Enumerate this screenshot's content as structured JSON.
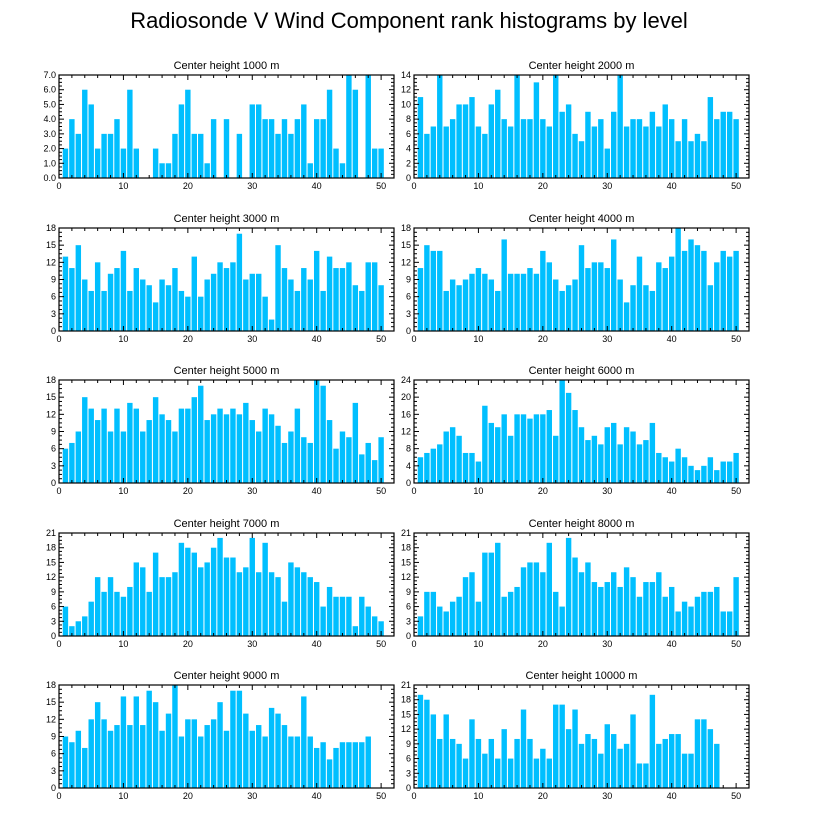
{
  "title": "Radiosonde V Wind Component rank histograms by level",
  "bar_color": "#00bfff",
  "chart_data": [
    {
      "type": "bar",
      "title": "Center height 1000 m",
      "xlim": [
        0,
        52
      ],
      "xticks": [
        0,
        10,
        20,
        30,
        40,
        50
      ],
      "ylim": [
        0,
        7
      ],
      "yticks": [
        0,
        1,
        2,
        3,
        4,
        5,
        6,
        7
      ],
      "ytick_labels": [
        "0.0",
        "1.0",
        "2.0",
        "3.0",
        "4.0",
        "5.0",
        "6.0",
        "7.0"
      ],
      "values": [
        2,
        4,
        3,
        6,
        5,
        2,
        3,
        3,
        4,
        2,
        6,
        2,
        0,
        0,
        2,
        1,
        1,
        3,
        5,
        6,
        3,
        3,
        1,
        4,
        0,
        4,
        0,
        3,
        0,
        5,
        5,
        4,
        4,
        3,
        4,
        3,
        4,
        5,
        1,
        4,
        4,
        6,
        2,
        1,
        7,
        6,
        0,
        7,
        2,
        2
      ]
    },
    {
      "type": "bar",
      "title": "Center height 2000 m",
      "xlim": [
        0,
        52
      ],
      "xticks": [
        0,
        10,
        20,
        30,
        40,
        50
      ],
      "ylim": [
        0,
        14
      ],
      "yticks": [
        0,
        2,
        4,
        6,
        8,
        10,
        12,
        14
      ],
      "ytick_labels": [
        "0",
        "2",
        "4",
        "6",
        "8",
        "10",
        "12",
        "14"
      ],
      "values": [
        11,
        6,
        7,
        14,
        7,
        8,
        10,
        10,
        11,
        7,
        6,
        10,
        12,
        8,
        7,
        14,
        8,
        8,
        13,
        8,
        7,
        14,
        9,
        10,
        6,
        5,
        9,
        7,
        8,
        4,
        9,
        14,
        7,
        8,
        8,
        7,
        9,
        7,
        10,
        8,
        5,
        8,
        5,
        6,
        5,
        11,
        8,
        9,
        9,
        8
      ]
    },
    {
      "type": "bar",
      "title": "Center height 3000 m",
      "xlim": [
        0,
        52
      ],
      "xticks": [
        0,
        10,
        20,
        30,
        40,
        50
      ],
      "ylim": [
        0,
        18
      ],
      "yticks": [
        0,
        3,
        6,
        9,
        12,
        15,
        18
      ],
      "ytick_labels": [
        "0",
        "3",
        "6",
        "9",
        "12",
        "15",
        "18"
      ],
      "values": [
        13,
        11,
        15,
        9,
        7,
        12,
        7,
        10,
        11,
        14,
        7,
        11,
        9,
        8,
        5,
        9,
        8,
        11,
        7,
        6,
        13,
        6,
        9,
        10,
        12,
        11,
        12,
        17,
        9,
        10,
        10,
        6,
        2,
        15,
        11,
        9,
        7,
        11,
        9,
        14,
        7,
        13,
        11,
        11,
        12,
        8,
        7,
        12,
        12,
        8
      ]
    },
    {
      "type": "bar",
      "title": "Center height 4000 m",
      "xlim": [
        0,
        52
      ],
      "xticks": [
        0,
        10,
        20,
        30,
        40,
        50
      ],
      "ylim": [
        0,
        18
      ],
      "yticks": [
        0,
        3,
        6,
        9,
        12,
        15,
        18
      ],
      "ytick_labels": [
        "0",
        "3",
        "6",
        "9",
        "12",
        "15",
        "18"
      ],
      "values": [
        11,
        15,
        14,
        14,
        7,
        9,
        8,
        9,
        10,
        11,
        10,
        9,
        7,
        16,
        10,
        10,
        10,
        11,
        10,
        14,
        12,
        9,
        7,
        8,
        9,
        15,
        11,
        12,
        12,
        11,
        16,
        9,
        5,
        8,
        13,
        8,
        7,
        12,
        11,
        13,
        18,
        14,
        16,
        15,
        14,
        8,
        12,
        14,
        13,
        14
      ]
    },
    {
      "type": "bar",
      "title": "Center height 5000 m",
      "xlim": [
        0,
        52
      ],
      "xticks": [
        0,
        10,
        20,
        30,
        40,
        50
      ],
      "ylim": [
        0,
        18
      ],
      "yticks": [
        0,
        3,
        6,
        9,
        12,
        15,
        18
      ],
      "ytick_labels": [
        "0",
        "3",
        "6",
        "9",
        "12",
        "15",
        "18"
      ],
      "values": [
        6,
        7,
        9,
        15,
        13,
        11,
        13,
        9,
        13,
        9,
        14,
        13,
        9,
        11,
        15,
        12,
        11,
        9,
        13,
        13,
        15,
        17,
        11,
        12,
        13,
        12,
        13,
        12,
        14,
        11,
        9,
        13,
        12,
        10,
        7,
        9,
        13,
        8,
        7,
        18,
        17,
        11,
        6,
        9,
        8,
        14,
        5,
        7,
        4,
        8
      ]
    },
    {
      "type": "bar",
      "title": "Center height 6000 m",
      "xlim": [
        0,
        52
      ],
      "xticks": [
        0,
        10,
        20,
        30,
        40,
        50
      ],
      "ylim": [
        0,
        24
      ],
      "yticks": [
        0,
        4,
        8,
        12,
        16,
        20,
        24
      ],
      "ytick_labels": [
        "0",
        "4",
        "8",
        "12",
        "16",
        "20",
        "24"
      ],
      "values": [
        6,
        7,
        8,
        9,
        12,
        13,
        11,
        7,
        7,
        5,
        18,
        14,
        13,
        16,
        11,
        16,
        16,
        15,
        16,
        16,
        17,
        11,
        24,
        21,
        17,
        13,
        10,
        11,
        9,
        13,
        14,
        9,
        13,
        12,
        9,
        10,
        14,
        7,
        6,
        5,
        8,
        6,
        4,
        3,
        4,
        6,
        3,
        5,
        5,
        7
      ]
    },
    {
      "type": "bar",
      "title": "Center height 7000 m",
      "xlim": [
        0,
        52
      ],
      "xticks": [
        0,
        10,
        20,
        30,
        40,
        50
      ],
      "ylim": [
        0,
        21
      ],
      "yticks": [
        0,
        3,
        6,
        9,
        12,
        15,
        18,
        21
      ],
      "ytick_labels": [
        "0",
        "3",
        "6",
        "9",
        "12",
        "15",
        "18",
        "21"
      ],
      "values": [
        6,
        2,
        3,
        4,
        7,
        12,
        9,
        12,
        9,
        8,
        10,
        15,
        14,
        9,
        17,
        12,
        12,
        13,
        19,
        18,
        17,
        14,
        15,
        18,
        20,
        16,
        16,
        13,
        14,
        20,
        13,
        19,
        13,
        12,
        7,
        15,
        14,
        13,
        12,
        11,
        6,
        10,
        8,
        8,
        8,
        2,
        8,
        6,
        4,
        3
      ]
    },
    {
      "type": "bar",
      "title": "Center height 8000 m",
      "xlim": [
        0,
        52
      ],
      "xticks": [
        0,
        10,
        20,
        30,
        40,
        50
      ],
      "ylim": [
        0,
        21
      ],
      "yticks": [
        0,
        3,
        6,
        9,
        12,
        15,
        18,
        21
      ],
      "ytick_labels": [
        "0",
        "3",
        "6",
        "9",
        "12",
        "15",
        "18",
        "21"
      ],
      "values": [
        4,
        9,
        9,
        6,
        5,
        7,
        8,
        12,
        13,
        7,
        17,
        17,
        19,
        8,
        9,
        10,
        14,
        15,
        15,
        13,
        19,
        9,
        6,
        20,
        16,
        13,
        15,
        11,
        10,
        11,
        13,
        10,
        14,
        12,
        8,
        11,
        11,
        13,
        8,
        10,
        5,
        7,
        6,
        8,
        9,
        9,
        10,
        5,
        5,
        12
      ]
    },
    {
      "type": "bar",
      "title": "Center height 9000 m",
      "xlim": [
        0,
        52
      ],
      "xticks": [
        0,
        10,
        20,
        30,
        40,
        50
      ],
      "ylim": [
        0,
        18
      ],
      "yticks": [
        0,
        3,
        6,
        9,
        12,
        15,
        18
      ],
      "ytick_labels": [
        "0",
        "3",
        "6",
        "9",
        "12",
        "15",
        "18"
      ],
      "values": [
        9,
        8,
        10,
        7,
        12,
        15,
        12,
        10,
        11,
        16,
        11,
        16,
        11,
        17,
        15,
        10,
        13,
        18,
        9,
        12,
        12,
        9,
        11,
        12,
        15,
        10,
        17,
        17,
        13,
        10,
        11,
        9,
        14,
        13,
        11,
        9,
        9,
        16,
        9,
        7,
        8,
        5,
        7,
        8,
        8,
        8,
        8,
        9
      ]
    },
    {
      "type": "bar",
      "title": "Center height 10000 m",
      "xlim": [
        0,
        52
      ],
      "xticks": [
        0,
        10,
        20,
        30,
        40,
        50
      ],
      "ylim": [
        0,
        21
      ],
      "yticks": [
        0,
        3,
        6,
        9,
        12,
        15,
        18,
        21
      ],
      "ytick_labels": [
        "0",
        "3",
        "6",
        "9",
        "12",
        "15",
        "18",
        "21"
      ],
      "values": [
        19,
        18,
        15,
        10,
        15,
        10,
        9,
        6,
        14,
        10,
        7,
        10,
        6,
        12,
        6,
        10,
        16,
        10,
        6,
        8,
        6,
        17,
        17,
        12,
        16,
        9,
        11,
        10,
        7,
        13,
        11,
        8,
        9,
        15,
        5,
        5,
        19,
        9,
        10,
        11,
        11,
        7,
        7,
        14,
        14,
        12,
        9
      ]
    }
  ]
}
